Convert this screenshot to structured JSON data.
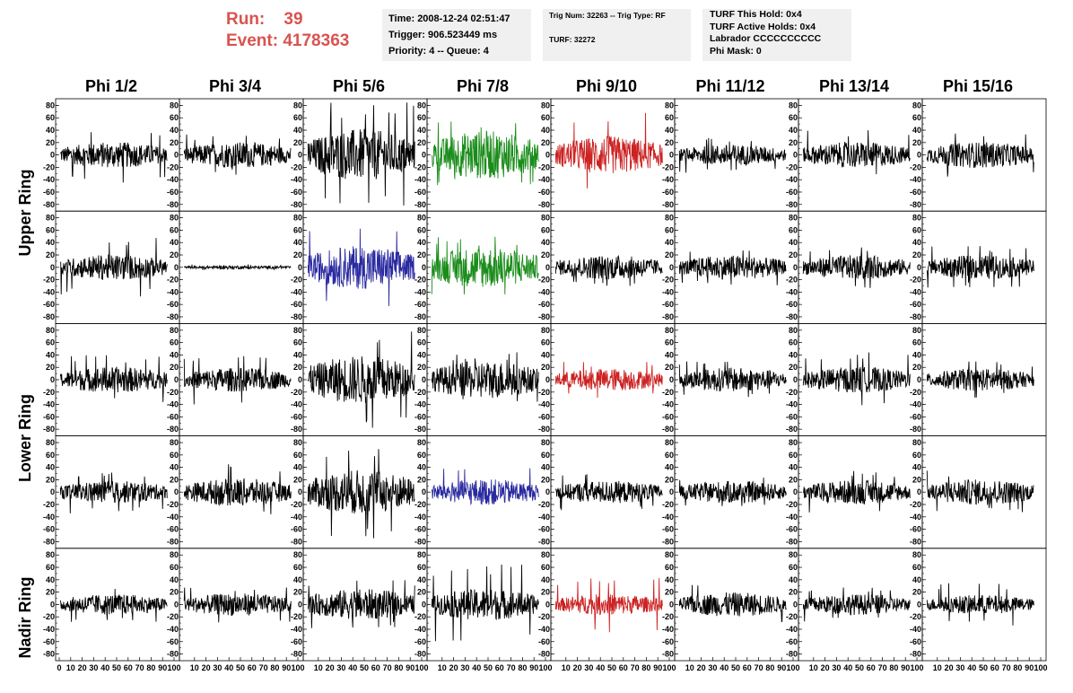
{
  "header": {
    "run_label": "Run:",
    "run_value": "39",
    "event_label": "Event:",
    "event_value": "4178363",
    "accent_color": "#d9534f"
  },
  "info_box_1": {
    "time": "Time: 2008-12-24 02:51:47",
    "trigger": "Trigger: 906.523449 ms",
    "priority": "Priority: 4 -- Queue: 4"
  },
  "info_box_2": {
    "trig": "Trig Num: 32263 -- Trig Type: RF",
    "turf": "TURF: 32272"
  },
  "info_box_3": {
    "hold": "TURF This Hold: 0x4",
    "active": "TURF Active Holds: 0x4",
    "labrador": "Labrador CCCCCCCCCC",
    "phimask": "Phi Mask: 0"
  },
  "columns": [
    "Phi 1/2",
    "Phi 3/4",
    "Phi 5/6",
    "Phi 7/8",
    "Phi 9/10",
    "Phi 11/12",
    "Phi 13/14",
    "Phi 15/16"
  ],
  "row_labels": [
    {
      "label": "Upper Ring"
    },
    {
      "label": "Lower Ring"
    },
    {
      "label": "Nadir Ring"
    }
  ],
  "chart_data": {
    "type": "line",
    "title": "",
    "xlim": [
      0,
      100
    ],
    "ylim": [
      -85,
      85
    ],
    "x_ticks": [
      0,
      10,
      20,
      30,
      40,
      50,
      60,
      70,
      80,
      90,
      100
    ],
    "y_ticks": [
      -80,
      -60,
      -40,
      -20,
      0,
      20,
      40,
      60,
      80
    ],
    "colors": {
      "k": "#000000",
      "g": "#1a8c1a",
      "r": "#cc2222",
      "b": "#2a2aa0"
    },
    "panel_rows": [
      {
        "row": 1,
        "ring": "Upper Ring",
        "amplitudes": [
          15,
          15,
          30,
          28,
          22,
          12,
          15,
          15
        ],
        "colors": [
          "k",
          "k",
          "k",
          "g",
          "r",
          "k",
          "k",
          "k"
        ],
        "max_abs": [
          45,
          33,
          85,
          55,
          70,
          30,
          40,
          35
        ]
      },
      {
        "row": 2,
        "ring": "Upper Ring",
        "amplitudes": [
          15,
          2,
          25,
          24,
          14,
          14,
          14,
          14
        ],
        "colors": [
          "k",
          "k",
          "b",
          "g",
          "k",
          "k",
          "k",
          "k"
        ],
        "max_abs": [
          48,
          5,
          65,
          50,
          32,
          30,
          35,
          35
        ]
      },
      {
        "row": 3,
        "ring": "Lower Ring",
        "amplitudes": [
          15,
          14,
          28,
          22,
          13,
          14,
          15,
          13
        ],
        "colors": [
          "k",
          "k",
          "k",
          "k",
          "r",
          "k",
          "k",
          "k"
        ],
        "max_abs": [
          40,
          40,
          85,
          45,
          30,
          30,
          45,
          30
        ]
      },
      {
        "row": 4,
        "ring": "Lower Ring",
        "amplitudes": [
          13,
          16,
          26,
          15,
          13,
          13,
          14,
          15
        ],
        "colors": [
          "k",
          "k",
          "k",
          "b",
          "k",
          "k",
          "k",
          "k"
        ],
        "max_abs": [
          35,
          45,
          75,
          40,
          30,
          25,
          35,
          35
        ]
      },
      {
        "row": 5,
        "ring": "Nadir Ring",
        "amplitudes": [
          12,
          13,
          18,
          18,
          12,
          14,
          12,
          11
        ],
        "colors": [
          "k",
          "k",
          "k",
          "k",
          "r",
          "k",
          "k",
          "k"
        ],
        "max_abs": [
          30,
          30,
          40,
          65,
          45,
          35,
          30,
          35
        ]
      }
    ]
  }
}
